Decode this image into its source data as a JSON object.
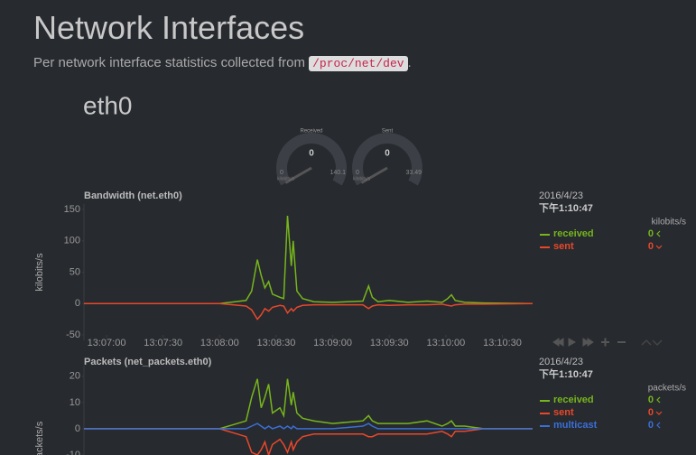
{
  "header": {
    "title": "Network Interfaces",
    "subtitle": "Per network interface statistics collected from",
    "code": "/proc/net/dev",
    "end": "."
  },
  "section": "eth0",
  "gauges": [
    {
      "label": "Received",
      "value": 0,
      "min": 0,
      "max": 140.1,
      "units": "kilobits/s"
    },
    {
      "label": "Sent",
      "value": 0,
      "min": 0,
      "max": 33.49,
      "units": "kilobits/s"
    }
  ],
  "chart_data": [
    {
      "type": "line",
      "title": "Bandwidth (net.eth0)",
      "ylabel": "kilobits/s",
      "x": [
        47208,
        47240,
        47280,
        47294,
        47297,
        47300,
        47302,
        47304,
        47306,
        47308,
        47312,
        47314,
        47316,
        47318,
        47319,
        47321,
        47324,
        47330,
        47340,
        47356,
        47359,
        47361,
        47364,
        47370,
        47380,
        47390,
        47398,
        47401,
        47403,
        47405,
        47410,
        47420,
        47446
      ],
      "xlim": [
        47208,
        47447
      ],
      "xticks": [
        {
          "value": 47220,
          "label": "13:07:00"
        },
        {
          "value": 47250,
          "label": "13:07:30"
        },
        {
          "value": 47280,
          "label": "13:08:00"
        },
        {
          "value": 47310,
          "label": "13:08:30"
        },
        {
          "value": 47340,
          "label": "13:09:00"
        },
        {
          "value": 47370,
          "label": "13:09:30"
        },
        {
          "value": 47400,
          "label": "13:10:00"
        },
        {
          "value": 47430,
          "label": "13:10:30"
        }
      ],
      "ylim": [
        -50,
        150
      ],
      "yticks": [
        150,
        100,
        50,
        0,
        -50
      ],
      "series": [
        {
          "name": "received",
          "color": "#77b51c",
          "values": [
            0,
            0,
            0,
            5,
            20,
            70,
            45,
            25,
            35,
            15,
            10,
            8,
            140,
            60,
            100,
            20,
            8,
            3,
            2,
            4,
            28,
            10,
            3,
            5,
            2,
            4,
            2,
            8,
            14,
            5,
            2,
            1,
            0
          ]
        },
        {
          "name": "sent",
          "color": "#e8482a",
          "values": [
            0,
            0,
            0,
            -4,
            -10,
            -25,
            -18,
            -8,
            -12,
            -6,
            -3,
            -4,
            -15,
            -8,
            -12,
            -6,
            -3,
            -2,
            -2,
            -2,
            -8,
            -4,
            -2,
            -3,
            -2,
            -2,
            -1,
            -3,
            -4,
            -2,
            -1,
            -1,
            0
          ]
        }
      ],
      "legend": {
        "date": "2016/4/23",
        "time": "下午1:10:47",
        "units": "kilobits/s",
        "values": [
          0,
          0
        ]
      }
    },
    {
      "type": "line",
      "title": "Packets (net_packets.eth0)",
      "ylabel": "packets/s",
      "x": [
        47208,
        47240,
        47280,
        47294,
        47297,
        47300,
        47302,
        47304,
        47306,
        47308,
        47312,
        47314,
        47316,
        47318,
        47319,
        47321,
        47324,
        47330,
        47340,
        47356,
        47359,
        47361,
        47364,
        47370,
        47380,
        47390,
        47398,
        47401,
        47403,
        47405,
        47410,
        47420,
        47446
      ],
      "xlim": [
        47208,
        47447
      ],
      "ylim": [
        -10,
        22
      ],
      "yticks": [
        20,
        10,
        0,
        -10
      ],
      "series": [
        {
          "name": "received",
          "color": "#77b51c",
          "values": [
            0,
            0,
            0,
            3,
            12,
            19,
            8,
            12,
            17,
            6,
            8,
            5,
            19,
            9,
            14,
            6,
            4,
            3,
            2,
            3,
            5,
            3,
            2,
            2,
            2,
            3,
            1,
            2,
            3,
            1,
            1,
            0,
            0
          ]
        },
        {
          "name": "sent",
          "color": "#e8482a",
          "values": [
            0,
            0,
            0,
            -3,
            -9,
            -10,
            -8,
            -5,
            -10,
            -6,
            -4,
            -6,
            -9,
            -5,
            -8,
            -5,
            -3,
            -2,
            -2,
            -2,
            -3,
            -3,
            -2,
            -2,
            -2,
            -2,
            -1,
            -2,
            -3,
            -1,
            -1,
            0,
            0
          ]
        },
        {
          "name": "multicast",
          "color": "#3b6fd6",
          "values": [
            0,
            0,
            0,
            0,
            1,
            2,
            1,
            0,
            1,
            0,
            1,
            0,
            1,
            0,
            1,
            0,
            0,
            0,
            0,
            1,
            2,
            1,
            0,
            0,
            0,
            0,
            0,
            0,
            0,
            0,
            0,
            0,
            0
          ]
        }
      ],
      "legend": {
        "date": "2016/4/23",
        "time": "下午1:10:47",
        "units": "packets/s",
        "values": [
          0,
          0,
          0
        ]
      }
    }
  ]
}
